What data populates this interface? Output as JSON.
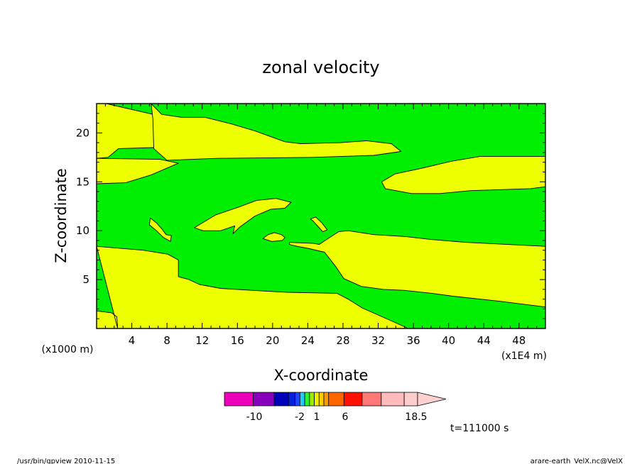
{
  "chart_data": {
    "type": "contour",
    "title": "zonal velocity",
    "xlabel": "X-coordinate",
    "ylabel": "Z-coordinate",
    "x_unit_label": "(x1E4 m)",
    "y_unit_label": "(x1000 m)",
    "xlim": [
      0,
      51
    ],
    "ylim": [
      0,
      23
    ],
    "x_ticks": [
      4,
      8,
      12,
      16,
      20,
      24,
      28,
      32,
      36,
      40,
      44,
      48
    ],
    "y_ticks": [
      5,
      10,
      15,
      20
    ],
    "fill_colors": {
      "low_band": "#00ee00",
      "high_band": "#eeff00"
    },
    "regions": [
      {
        "level": "high",
        "points": [
          [
            1.1,
            23
          ],
          [
            6.4,
            21.9
          ],
          [
            7.7,
            20.9
          ],
          [
            8.1,
            19.2
          ],
          [
            6.6,
            18.5
          ],
          [
            2.5,
            18.4
          ],
          [
            1.3,
            17.5
          ],
          [
            0,
            17.4
          ],
          [
            0,
            23
          ]
        ]
      },
      {
        "level": "high",
        "points": [
          [
            0,
            17.4
          ],
          [
            7.2,
            17.3
          ],
          [
            9.3,
            16.9
          ],
          [
            6.2,
            15.7
          ],
          [
            3.3,
            14.9
          ],
          [
            0,
            14.8
          ]
        ]
      },
      {
        "level": "high",
        "points": [
          [
            6.2,
            23
          ],
          [
            7.4,
            21.9
          ],
          [
            9.6,
            21.6
          ],
          [
            12.3,
            21.6
          ],
          [
            15.4,
            20.9
          ],
          [
            18,
            20.2
          ],
          [
            21.4,
            19.1
          ],
          [
            23.2,
            18.9
          ],
          [
            27.7,
            19
          ],
          [
            30.7,
            19.2
          ],
          [
            33.5,
            18.9
          ],
          [
            34.6,
            18.1
          ],
          [
            31.5,
            17.7
          ],
          [
            24.5,
            17.5
          ],
          [
            13.7,
            17.4
          ],
          [
            8,
            17.2
          ],
          [
            6.5,
            18.4
          ],
          [
            6.4,
            21.4
          ]
        ]
      },
      {
        "level": "high",
        "points": [
          [
            32.4,
            15
          ],
          [
            33.9,
            15.8
          ],
          [
            37,
            16.4
          ],
          [
            40.3,
            17.1
          ],
          [
            43.6,
            17.6
          ],
          [
            46.6,
            17.6
          ],
          [
            51,
            17.6
          ],
          [
            51,
            14.5
          ],
          [
            49.3,
            14.3
          ],
          [
            42.5,
            14.1
          ],
          [
            39,
            13.8
          ],
          [
            35.8,
            13.8
          ],
          [
            32.8,
            14.3
          ]
        ]
      },
      {
        "level": "high",
        "points": [
          [
            0,
            8.4
          ],
          [
            5.3,
            8
          ],
          [
            8.1,
            7.6
          ],
          [
            9.3,
            7
          ],
          [
            9.3,
            5.3
          ],
          [
            10.5,
            5
          ],
          [
            11.7,
            4.5
          ],
          [
            14.1,
            4.1
          ],
          [
            17.6,
            3.9
          ],
          [
            21.7,
            3.7
          ],
          [
            27.3,
            3.6
          ],
          [
            28.6,
            3
          ],
          [
            30.2,
            2.1
          ],
          [
            34.2,
            0.5
          ],
          [
            35.4,
            0
          ],
          [
            0,
            0
          ],
          [
            0,
            1.8
          ],
          [
            1.7,
            1.6
          ],
          [
            2.3,
            1.2
          ],
          [
            2.4,
            0
          ]
        ]
      },
      {
        "level": "high",
        "points": [
          [
            21.9,
            8.8
          ],
          [
            24.7,
            8.7
          ],
          [
            25.3,
            8.6
          ],
          [
            26.3,
            9.2
          ],
          [
            27.5,
            9.9
          ],
          [
            28.6,
            10
          ],
          [
            31.5,
            9.6
          ],
          [
            35.1,
            9.4
          ],
          [
            38,
            9.1
          ],
          [
            42.1,
            8.8
          ],
          [
            51,
            8.4
          ],
          [
            51,
            2.2
          ],
          [
            45.7,
            2.8
          ],
          [
            40.5,
            3.3
          ],
          [
            38.1,
            3.6
          ],
          [
            34.9,
            3.9
          ],
          [
            32.6,
            4
          ],
          [
            30.1,
            4.3
          ],
          [
            28.1,
            5.1
          ],
          [
            27.2,
            6.3
          ],
          [
            25.9,
            7.8
          ],
          [
            24,
            8.2
          ],
          [
            22.8,
            8.4
          ],
          [
            21.9,
            8.6
          ]
        ]
      },
      {
        "level": "high",
        "points": [
          [
            11.1,
            10.3
          ],
          [
            13.5,
            11.6
          ],
          [
            16.1,
            12.4
          ],
          [
            18.2,
            13.1
          ],
          [
            20.4,
            13.3
          ],
          [
            22.1,
            12.9
          ],
          [
            21.4,
            12.3
          ],
          [
            19.8,
            12.2
          ],
          [
            18,
            11.5
          ],
          [
            16.3,
            10.4
          ],
          [
            15.5,
            9.7
          ],
          [
            15.7,
            10.5
          ],
          [
            14.1,
            10
          ],
          [
            12.1,
            10
          ]
        ]
      },
      {
        "level": "high",
        "points": [
          [
            6.1,
            11.3
          ],
          [
            6.8,
            10.8
          ],
          [
            7.4,
            10.2
          ],
          [
            7.9,
            9.6
          ],
          [
            8.5,
            9.5
          ],
          [
            8.4,
            8.9
          ],
          [
            7.6,
            9.3
          ],
          [
            6.8,
            10
          ],
          [
            6,
            10.6
          ]
        ]
      },
      {
        "level": "high",
        "points": [
          [
            18.9,
            9.2
          ],
          [
            19.5,
            9.6
          ],
          [
            20.2,
            9.8
          ],
          [
            21,
            9.6
          ],
          [
            21.4,
            9.3
          ],
          [
            21.1,
            9
          ],
          [
            19.9,
            8.9
          ]
        ]
      },
      {
        "level": "high",
        "points": [
          [
            24.3,
            11.2
          ],
          [
            24.9,
            11.4
          ],
          [
            25.6,
            10.8
          ],
          [
            26.2,
            10.1
          ],
          [
            25.7,
            9.9
          ],
          [
            25.1,
            10.5
          ],
          [
            24.6,
            11
          ]
        ]
      }
    ],
    "colorbar": {
      "colors": [
        "#ee00bb",
        "#8800bb",
        "#0000bb",
        "#0022dd",
        "#2244ff",
        "#22ccff",
        "#33ee33",
        "#99ee00",
        "#eeee00",
        "#ffcc00",
        "#ff9900",
        "#ff6600",
        "#ff1100",
        "#ff7777",
        "#ffbbbb",
        "#ffcccc"
      ],
      "widths": [
        3,
        2.2,
        1.5,
        0.7,
        0.5,
        0.5,
        0.5,
        0.5,
        0.5,
        0.5,
        0.5,
        1.6,
        1.9,
        2,
        2.4,
        1.4
      ],
      "tick_labels": [
        "-10",
        "-2",
        "1",
        "6",
        "18.5"
      ]
    },
    "time_label": "t=111000 s",
    "footer_left": "/usr/bin/gpview  2010-11-15",
    "footer_right": "arare-earth_VelX.nc@VelX"
  }
}
